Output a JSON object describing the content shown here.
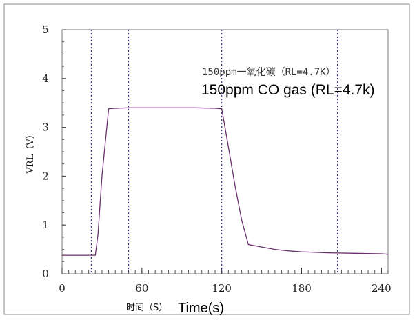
{
  "chart_data": {
    "type": "line",
    "xlim": [
      0,
      245
    ],
    "ylim": [
      0,
      5
    ],
    "xticks": [
      0,
      60,
      120,
      180,
      240
    ],
    "yticks": [
      0,
      1,
      2,
      3,
      4,
      5
    ],
    "xlabel_cn": "时间（S）",
    "xlabel_en": "Time(s)",
    "ylabel": "VRL（V）",
    "annotation_cn": "150ppm一氧化碳（RL=4.7K）",
    "annotation_en": "150ppm CO gas (RL=4.7k)",
    "vlines": [
      22,
      50,
      120,
      207
    ],
    "series": [
      {
        "x": [
          0,
          25,
          27,
          30,
          35,
          40,
          50,
          60,
          80,
          100,
          115,
          120,
          125,
          130,
          135,
          140,
          150,
          160,
          170,
          180,
          200,
          220,
          240,
          245
        ],
        "y": [
          0.38,
          0.38,
          0.8,
          2.0,
          3.38,
          3.39,
          3.4,
          3.4,
          3.4,
          3.4,
          3.39,
          3.38,
          2.6,
          1.8,
          1.1,
          0.6,
          0.55,
          0.5,
          0.47,
          0.45,
          0.43,
          0.42,
          0.41,
          0.4
        ],
        "color": "#6b2f6e"
      }
    ],
    "grid": false
  }
}
